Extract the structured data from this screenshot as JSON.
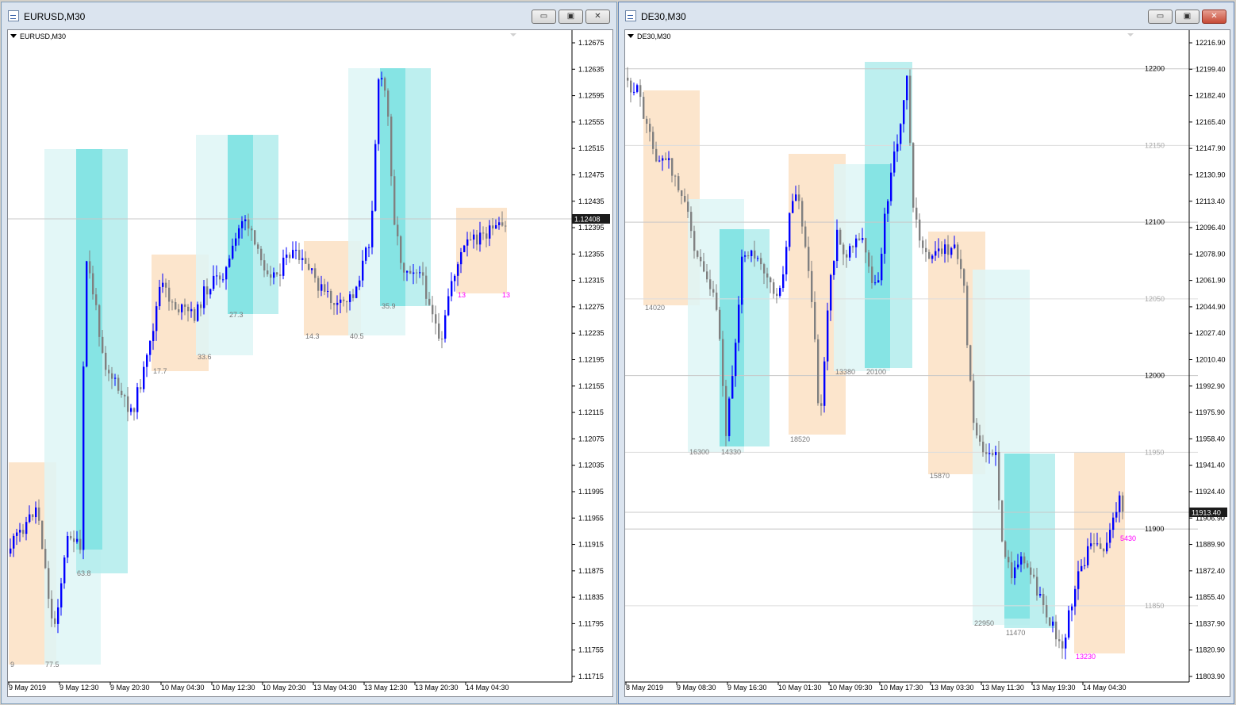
{
  "windows": [
    {
      "title": "EURUSD,M30",
      "chart_label": "EURUSD,M30",
      "buttons": {
        "minimize": "▭",
        "maximize": "▣",
        "close": "✕"
      },
      "chart_data": {
        "type": "candlestick",
        "symbol": "EURUSD",
        "timeframe": "M30",
        "ylim": [
          1.11715,
          1.12695
        ],
        "y_ticks": [
          "1.12675",
          "1.12635",
          "1.12595",
          "1.12555",
          "1.12515",
          "1.12475",
          "1.12435",
          "1.12395",
          "1.12355",
          "1.12315",
          "1.12275",
          "1.12235",
          "1.12195",
          "1.12155",
          "1.12115",
          "1.12075",
          "1.12035",
          "1.11995",
          "1.11955",
          "1.11915",
          "1.11875",
          "1.11835",
          "1.11795",
          "1.11755",
          "1.11715"
        ],
        "x_ticks": [
          "9 May 2019",
          "9 May 12:30",
          "9 May 20:30",
          "10 May 04:30",
          "10 May 12:30",
          "10 May 20:30",
          "13 May 04:30",
          "13 May 12:30",
          "13 May 20:30",
          "14 May 04:30"
        ],
        "current_price": "1.12408",
        "box_labels": [
          "9",
          "77.5",
          "63.8",
          "17.7",
          "33.6",
          "27.3",
          "14.3",
          "40.5",
          "35.9",
          "13",
          "13"
        ],
        "colors": {
          "bull": "#0000ff",
          "bear": "#808080",
          "orange_box": "#fbe0c3",
          "light_cyan_box": "#def6f6",
          "cyan_box": "#b2ecec",
          "deep_cyan_box": "#7de2e2",
          "label": "#777777",
          "magenta_label": "#ff00ff"
        }
      }
    },
    {
      "title": "DE30,M30",
      "chart_label": "DE30,M30",
      "buttons": {
        "minimize": "▭",
        "maximize": "▣",
        "close": "✕"
      },
      "chart_data": {
        "type": "candlestick",
        "symbol": "DE30",
        "timeframe": "M30",
        "ylim": [
          11803.9,
          12216.9
        ],
        "y_ticks": [
          "12216.90",
          "12199.40",
          "12182.40",
          "12165.40",
          "12147.90",
          "12130.90",
          "12113.40",
          "12096.40",
          "12078.90",
          "12061.90",
          "12044.90",
          "12027.40",
          "12010.40",
          "11992.90",
          "11975.90",
          "11958.40",
          "11941.40",
          "11924.40",
          "11906.90",
          "11889.90",
          "11872.40",
          "11855.40",
          "11837.90",
          "11820.90",
          "11803.90"
        ],
        "x_ticks": [
          "8 May 2019",
          "9 May 08:30",
          "9 May 16:30",
          "10 May 01:30",
          "10 May 09:30",
          "10 May 17:30",
          "13 May 03:30",
          "13 May 11:30",
          "13 May 19:30",
          "14 May 04:30"
        ],
        "current_price": "11913.40",
        "levels": [
          {
            "value": "12200",
            "major": true
          },
          {
            "value": "12150",
            "major": false
          },
          {
            "value": "12100",
            "major": true
          },
          {
            "value": "12050",
            "major": false
          },
          {
            "value": "12000",
            "major": true
          },
          {
            "value": "11950",
            "major": false
          },
          {
            "value": "11900",
            "major": true
          },
          {
            "value": "11850",
            "major": false
          }
        ],
        "box_labels": [
          "14020",
          "16300",
          "14330",
          "18520",
          "13380",
          "20100",
          "15870",
          "22950",
          "11470",
          "13230",
          "5430"
        ],
        "colors": {
          "bull": "#0000ff",
          "bear": "#808080",
          "orange_box": "#fbe0c3",
          "light_cyan_box": "#def6f6",
          "cyan_box": "#b2ecec",
          "deep_cyan_box": "#7de2e2",
          "label": "#777777",
          "magenta_label": "#ff00ff"
        }
      }
    }
  ]
}
